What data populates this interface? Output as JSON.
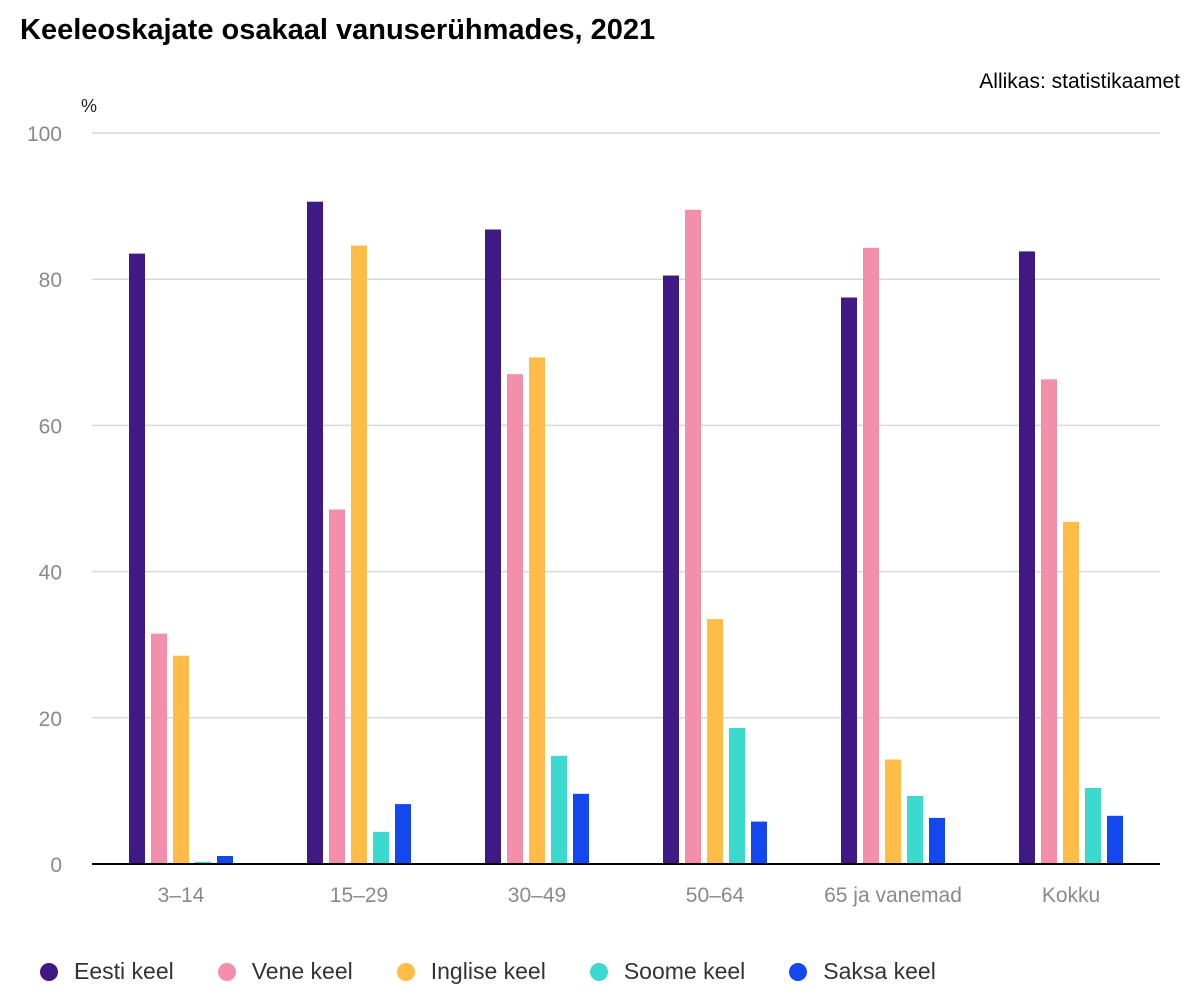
{
  "title": "Keeleoskajate osakaal vanuserühmades, 2021",
  "source": "Allikas: statistikaamet",
  "chart_data": {
    "type": "bar",
    "y_unit": "%",
    "ylim": [
      0,
      100
    ],
    "y_ticks": [
      0,
      20,
      40,
      60,
      80,
      100
    ],
    "grid": true,
    "legend_position": "bottom",
    "categories": [
      "3–14",
      "15–29",
      "30–49",
      "50–64",
      "65 ja vanemad",
      "Kokku"
    ],
    "series": [
      {
        "name": "Eesti keel",
        "color": "#3f1a84",
        "values": [
          83.5,
          90.6,
          86.8,
          80.5,
          77.5,
          83.8
        ]
      },
      {
        "name": "Vene keel",
        "color": "#f48fab",
        "values": [
          31.5,
          48.5,
          67.0,
          89.5,
          84.3,
          66.3
        ]
      },
      {
        "name": "Inglise keel",
        "color": "#ffbc47",
        "values": [
          28.5,
          84.6,
          69.3,
          33.5,
          14.3,
          46.8
        ]
      },
      {
        "name": "Soome keel",
        "color": "#3cd9cf",
        "values": [
          0.3,
          4.4,
          14.8,
          18.6,
          9.3,
          10.4
        ]
      },
      {
        "name": "Saksa keel",
        "color": "#1248ee",
        "values": [
          1.1,
          8.2,
          9.6,
          5.8,
          6.3,
          6.6
        ]
      }
    ]
  }
}
